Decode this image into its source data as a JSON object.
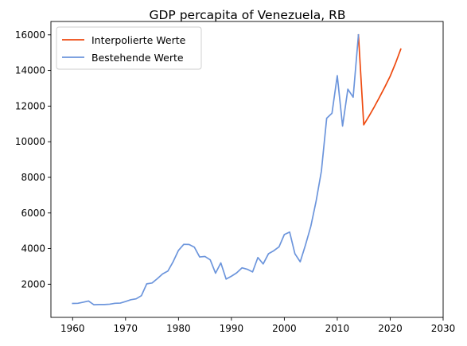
{
  "chart_data": {
    "type": "line",
    "title": "GDP percapita of Venezuela, RB",
    "xlabel": "",
    "ylabel": "",
    "xlim": [
      1955.9,
      2030
    ],
    "ylim": [
      140,
      16750
    ],
    "xticks": [
      1960,
      1970,
      1980,
      1990,
      2000,
      2010,
      2020,
      2030
    ],
    "yticks": [
      2000,
      4000,
      6000,
      8000,
      10000,
      12000,
      14000,
      16000
    ],
    "grid": false,
    "legend": {
      "position": "top-left"
    },
    "series": [
      {
        "name": "Interpolierte Werte",
        "color": "#ee4a10",
        "x": [
          2014,
          2015,
          2016,
          2017,
          2018,
          2019,
          2020,
          2021,
          2022
        ],
        "y": [
          16000,
          10950,
          11440,
          11960,
          12510,
          13080,
          13680,
          14400,
          15200
        ]
      },
      {
        "name": "Bestehende Werte",
        "color": "#6c95dc",
        "x": [
          1960,
          1961,
          1962,
          1963,
          1964,
          1965,
          1966,
          1967,
          1968,
          1969,
          1970,
          1971,
          1972,
          1973,
          1974,
          1975,
          1976,
          1977,
          1978,
          1979,
          1980,
          1981,
          1982,
          1983,
          1984,
          1985,
          1986,
          1987,
          1988,
          1989,
          1990,
          1991,
          1992,
          1993,
          1994,
          1995,
          1996,
          1997,
          1998,
          1999,
          2000,
          2001,
          2002,
          2003,
          2004,
          2005,
          2006,
          2007,
          2008,
          2009,
          2010,
          2011,
          2012,
          2013,
          2014
        ],
        "y": [
          920,
          930,
          990,
          1060,
          850,
          860,
          860,
          880,
          930,
          940,
          1030,
          1130,
          1180,
          1360,
          2020,
          2070,
          2310,
          2580,
          2740,
          3270,
          3900,
          4240,
          4230,
          4080,
          3530,
          3560,
          3370,
          2620,
          3200,
          2290,
          2450,
          2640,
          2920,
          2840,
          2690,
          3500,
          3140,
          3710,
          3880,
          4100,
          4790,
          4930,
          3710,
          3260,
          4210,
          5250,
          6660,
          8350,
          11320,
          11600,
          13710,
          10880,
          12950,
          12500,
          16000
        ]
      }
    ]
  }
}
